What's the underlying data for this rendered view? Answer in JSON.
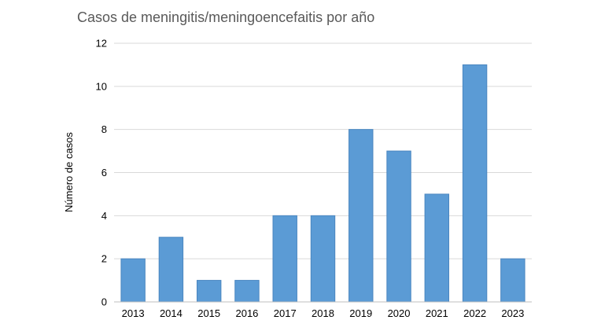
{
  "chart_data": {
    "type": "bar",
    "title": "Casos de meningitis/meningoencefaitis por año",
    "xlabel": "",
    "ylabel": "Número de casos",
    "categories": [
      "2013",
      "2014",
      "2015",
      "2016",
      "2017",
      "2018",
      "2019",
      "2020",
      "2021",
      "2022",
      "2023"
    ],
    "values": [
      2,
      3,
      1,
      1,
      4,
      4,
      8,
      7,
      5,
      11,
      2
    ],
    "ylim": [
      0,
      12
    ],
    "yticks": [
      0,
      2,
      4,
      6,
      8,
      10,
      12
    ],
    "grid": true,
    "legend": "none",
    "bar_color": "#5b9bd5",
    "bar_stroke": "#4a86c0"
  }
}
